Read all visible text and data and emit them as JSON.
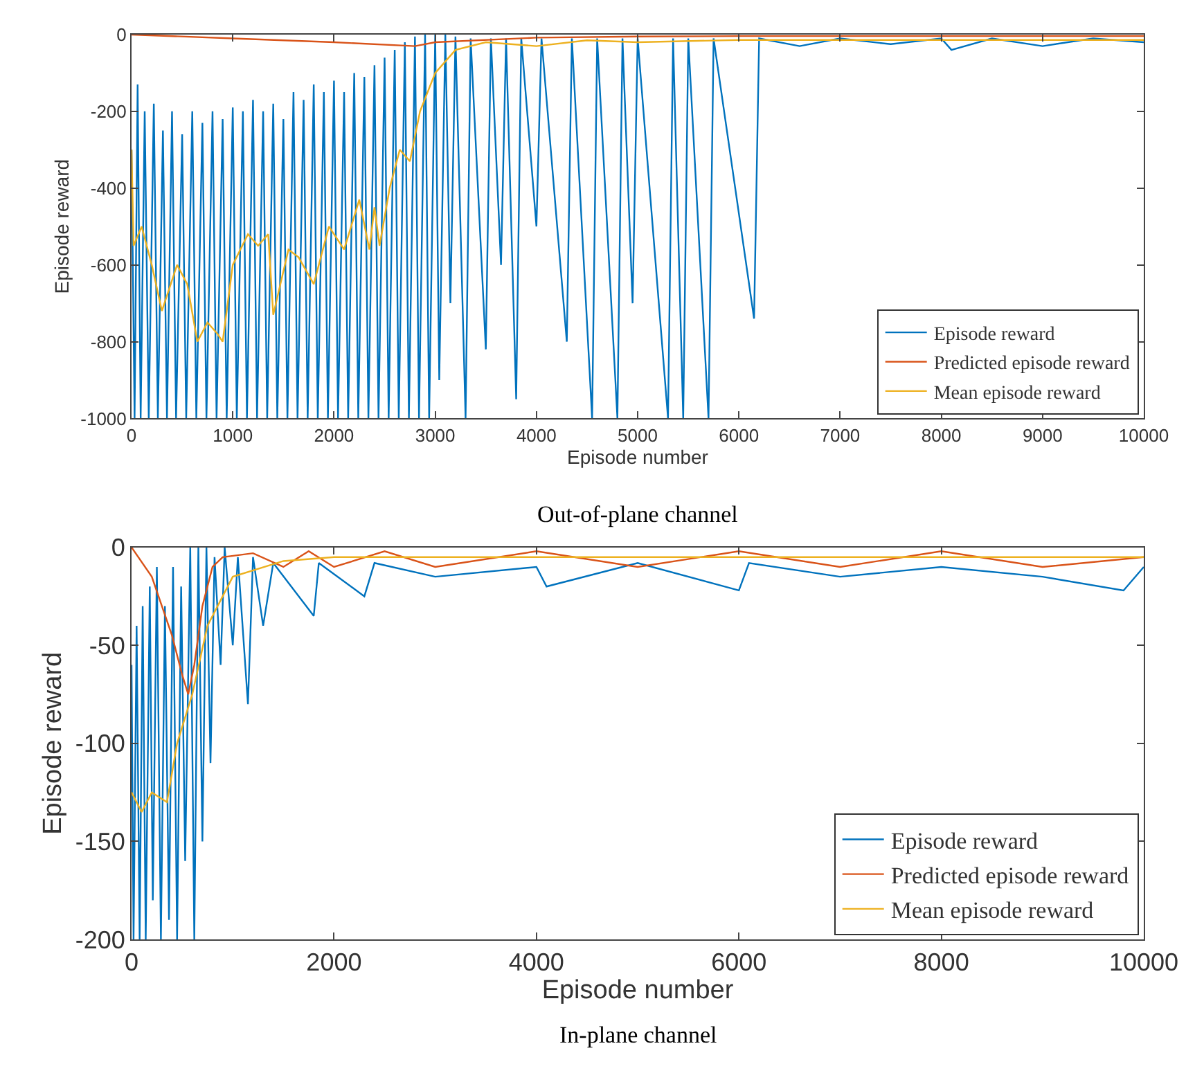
{
  "chart_data": [
    {
      "type": "line",
      "xlabel": "Episode number",
      "ylabel": "Episode reward",
      "annotations": [
        "Out-of-plane channel"
      ],
      "xlim": [
        0,
        10000
      ],
      "xticks": [
        0,
        1000,
        2000,
        3000,
        4000,
        5000,
        6000,
        7000,
        8000,
        9000,
        10000
      ],
      "ylim": [
        -1000,
        0
      ],
      "yticks": [
        -1000,
        -800,
        -600,
        -400,
        -200,
        0
      ],
      "legend": "bottom right",
      "marker": "none",
      "line_style": "solid",
      "series": [
        {
          "name": "Episode reward",
          "color": "#0072bd",
          "x": [
            0,
            30,
            60,
            90,
            130,
            170,
            220,
            260,
            310,
            350,
            400,
            440,
            500,
            540,
            600,
            640,
            700,
            740,
            800,
            840,
            900,
            940,
            1000,
            1040,
            1100,
            1140,
            1200,
            1240,
            1300,
            1340,
            1400,
            1440,
            1500,
            1540,
            1600,
            1640,
            1700,
            1740,
            1800,
            1840,
            1900,
            1940,
            2000,
            2040,
            2100,
            2140,
            2200,
            2240,
            2300,
            2340,
            2400,
            2440,
            2500,
            2540,
            2600,
            2640,
            2700,
            2740,
            2800,
            2840,
            2900,
            2940,
            3000,
            3040,
            3100,
            3150,
            3200,
            3300,
            3350,
            3500,
            3550,
            3650,
            3700,
            3800,
            3850,
            4000,
            4050,
            4300,
            4350,
            4550,
            4600,
            4800,
            4850,
            4950,
            5000,
            5300,
            5350,
            5450,
            5500,
            5700,
            5750,
            6150,
            6200,
            6600,
            7000,
            7500,
            8000,
            8100,
            8500,
            9000,
            9500,
            10000
          ],
          "values": [
            -300,
            -1000,
            -130,
            -1000,
            -200,
            -1000,
            -180,
            -1000,
            -250,
            -1000,
            -200,
            -1000,
            -260,
            -1000,
            -200,
            -1000,
            -230,
            -1000,
            -200,
            -1000,
            -220,
            -1000,
            -190,
            -1000,
            -200,
            -1000,
            -170,
            -1000,
            -200,
            -1000,
            -180,
            -1000,
            -220,
            -1000,
            -150,
            -1000,
            -170,
            -1000,
            -130,
            -1000,
            -150,
            -1000,
            -120,
            -1000,
            -150,
            -1000,
            -100,
            -1000,
            -110,
            -1000,
            -80,
            -1000,
            -60,
            -1000,
            -40,
            -1000,
            -20,
            -1000,
            -5,
            -1000,
            0,
            -1000,
            0,
            -900,
            0,
            -700,
            -5,
            -1000,
            -10,
            -820,
            -10,
            -600,
            -10,
            -950,
            -10,
            -500,
            -10,
            -800,
            -10,
            -1000,
            -10,
            -1000,
            -10,
            -700,
            -10,
            -1000,
            -10,
            -1000,
            -10,
            -1000,
            -10,
            -740,
            -10,
            -30,
            -10,
            -25,
            -10,
            -40,
            -10,
            -30,
            -10,
            -20
          ]
        },
        {
          "name": "Predicted episode reward",
          "color": "#d95319",
          "x": [
            0,
            1000,
            2000,
            2800,
            3000,
            4000,
            5000,
            6000,
            7000,
            8000,
            9000,
            10000
          ],
          "values": [
            0,
            -10,
            -20,
            -30,
            -20,
            -8,
            -5,
            -4,
            -4,
            -4,
            -4,
            -4
          ]
        },
        {
          "name": "Mean episode reward",
          "color": "#edb120",
          "x": [
            0,
            20,
            100,
            200,
            300,
            450,
            550,
            650,
            750,
            850,
            900,
            1000,
            1150,
            1250,
            1350,
            1400,
            1550,
            1650,
            1800,
            1950,
            2100,
            2250,
            2350,
            2400,
            2450,
            2550,
            2650,
            2750,
            2850,
            3000,
            3200,
            3500,
            4000,
            4500,
            5000,
            6000,
            10000
          ],
          "values": [
            -300,
            -550,
            -500,
            -600,
            -720,
            -600,
            -650,
            -800,
            -750,
            -780,
            -800,
            -600,
            -520,
            -550,
            -520,
            -730,
            -560,
            -580,
            -650,
            -500,
            -560,
            -430,
            -560,
            -450,
            -550,
            -400,
            -300,
            -330,
            -200,
            -100,
            -40,
            -20,
            -30,
            -15,
            -20,
            -14,
            -14
          ]
        }
      ]
    },
    {
      "type": "line",
      "xlabel": "Episode number",
      "ylabel": "Episode reward",
      "annotations": [
        "In-plane channel"
      ],
      "xlim": [
        0,
        10000
      ],
      "xticks": [
        0,
        2000,
        4000,
        6000,
        8000,
        10000
      ],
      "ylim": [
        -200,
        0
      ],
      "yticks": [
        -200,
        -150,
        -100,
        -50,
        0
      ],
      "legend": "bottom right",
      "marker": "none",
      "line_style": "solid",
      "series": [
        {
          "name": "Episode reward",
          "color": "#0072bd",
          "x": [
            0,
            20,
            50,
            80,
            110,
            140,
            180,
            210,
            250,
            290,
            330,
            370,
            410,
            450,
            490,
            530,
            580,
            620,
            660,
            700,
            740,
            780,
            820,
            880,
            920,
            1000,
            1050,
            1150,
            1200,
            1300,
            1400,
            1800,
            1850,
            2300,
            2400,
            3000,
            4000,
            4100,
            5000,
            6000,
            6100,
            7000,
            8000,
            9000,
            9800,
            10000
          ],
          "values": [
            -60,
            -200,
            -40,
            -200,
            -30,
            -200,
            -20,
            -180,
            -10,
            -200,
            -30,
            -190,
            -10,
            -200,
            -20,
            -160,
            0,
            -200,
            0,
            -150,
            0,
            -110,
            -5,
            -60,
            0,
            -50,
            -5,
            -80,
            -5,
            -40,
            -8,
            -35,
            -8,
            -25,
            -8,
            -15,
            -10,
            -20,
            -8,
            -22,
            -8,
            -15,
            -10,
            -15,
            -22,
            -10
          ]
        },
        {
          "name": "Predicted episode reward",
          "color": "#d95319",
          "x": [
            0,
            200,
            400,
            500,
            560,
            620,
            700,
            800,
            900,
            1200,
            1500,
            1750,
            2000,
            2500,
            3000,
            4000,
            5000,
            6000,
            7000,
            8000,
            9000,
            10000
          ],
          "values": [
            0,
            -15,
            -45,
            -65,
            -75,
            -60,
            -30,
            -10,
            -5,
            -3,
            -10,
            -2,
            -10,
            -2,
            -10,
            -2,
            -10,
            -2,
            -10,
            -2,
            -10,
            -5
          ]
        },
        {
          "name": "Mean episode reward",
          "color": "#edb120",
          "x": [
            0,
            100,
            200,
            350,
            450,
            600,
            750,
            1000,
            1500,
            2000,
            10000
          ],
          "values": [
            -125,
            -135,
            -125,
            -130,
            -100,
            -75,
            -40,
            -15,
            -7,
            -5,
            -5
          ]
        }
      ]
    }
  ]
}
